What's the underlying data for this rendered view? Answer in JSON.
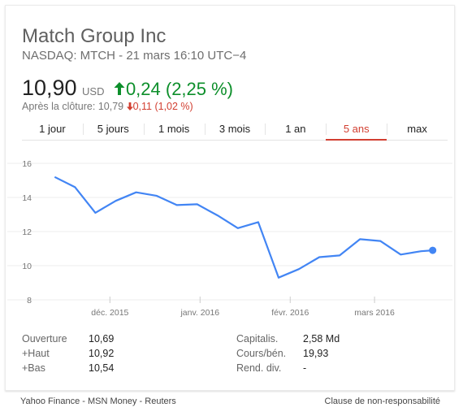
{
  "header": {
    "company": "Match Group Inc",
    "exchange_line": "NASDAQ: MTCH - 21 mars 16:10 UTC−4"
  },
  "quote": {
    "price": "10,90",
    "currency": "USD",
    "change": "0,24 (2,25 %)",
    "change_color": "#0d8f2b",
    "after_hours_label": "Après la clôture:",
    "after_hours_price": "10,79",
    "after_hours_change": "0,11 (1,02 %)",
    "after_hours_change_color": "#d23f31"
  },
  "tabs": [
    {
      "label": "1 jour",
      "active": false
    },
    {
      "label": "5 jours",
      "active": false
    },
    {
      "label": "1 mois",
      "active": false
    },
    {
      "label": "3 mois",
      "active": false
    },
    {
      "label": "1 an",
      "active": false
    },
    {
      "label": "5 ans",
      "active": true
    },
    {
      "label": "max",
      "active": false
    }
  ],
  "chart_data": {
    "type": "line",
    "series": [
      {
        "x": [
          "2015-11-12",
          "2015-11-19",
          "2015-11-26",
          "2015-12-03",
          "2015-12-10",
          "2015-12-17",
          "2015-12-24",
          "2015-12-31",
          "2016-01-07",
          "2016-01-14",
          "2016-01-21",
          "2016-01-28",
          "2016-02-04",
          "2016-02-11",
          "2016-02-18",
          "2016-02-25",
          "2016-03-03",
          "2016-03-10",
          "2016-03-17",
          "2016-03-21"
        ],
        "values": [
          15.2,
          14.6,
          13.1,
          13.8,
          14.3,
          14.1,
          13.55,
          13.6,
          12.95,
          12.2,
          12.55,
          9.3,
          9.8,
          10.5,
          10.6,
          11.55,
          11.45,
          10.65,
          10.85,
          10.9
        ]
      }
    ],
    "xticks": [
      {
        "label": "déc. 2015",
        "date": "2015-12-01"
      },
      {
        "label": "janv. 2016",
        "date": "2016-01-01"
      },
      {
        "label": "févr. 2016",
        "date": "2016-02-01"
      },
      {
        "label": "mars 2016",
        "date": "2016-03-01"
      }
    ],
    "yticks": [
      8,
      10,
      12,
      14,
      16
    ],
    "ylim": [
      8,
      17
    ],
    "xlim": [
      "2015-11-08",
      "2016-03-25"
    ],
    "grid": true,
    "line_color": "#4285f4"
  },
  "stats": {
    "left": [
      {
        "label": "Ouverture",
        "value": "10,69"
      },
      {
        "label": "+Haut",
        "value": "10,92"
      },
      {
        "label": "+Bas",
        "value": "10,54"
      }
    ],
    "right": [
      {
        "label": "Capitalis.",
        "value": "2,58 Md"
      },
      {
        "label": "Cours/bén.",
        "value": "19,93"
      },
      {
        "label": "Rend. div.",
        "value": "-"
      }
    ]
  },
  "footer": {
    "sources": [
      "Yahoo Finance",
      "MSN Money",
      "Reuters"
    ],
    "separator": " - ",
    "disclaimer": "Clause de non-responsabilité"
  }
}
